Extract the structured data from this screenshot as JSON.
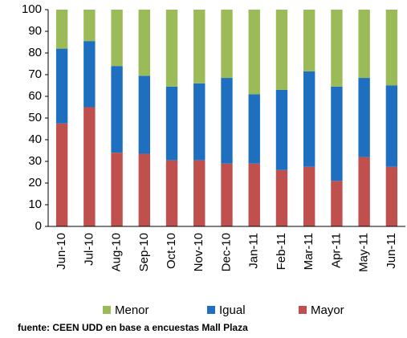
{
  "chart_data": {
    "type": "stacked_bar",
    "categories": [
      "Jun-10",
      "Jul-10",
      "Aug-10",
      "Sep-10",
      "Oct-10",
      "Nov-10",
      "Dec-10",
      "Jan-11",
      "Feb-11",
      "Mar-11",
      "Apr-11",
      "May-11",
      "Jun-11"
    ],
    "series": [
      {
        "name": "Menor",
        "color": "#9bbb59",
        "values": [
          18,
          14.5,
          26,
          30.5,
          35.5,
          34,
          31.5,
          39,
          37,
          28.5,
          35.5,
          31.5,
          35
        ]
      },
      {
        "name": "Igual",
        "color": "#1f6fc0",
        "values": [
          34.5,
          30.5,
          40,
          36,
          34,
          35.5,
          39.5,
          32,
          37,
          44,
          43.5,
          36.5,
          37.5
        ]
      },
      {
        "name": "Mayor",
        "color": "#c0504d",
        "values": [
          47.5,
          55,
          34,
          33.5,
          30.5,
          30.5,
          29,
          29,
          26,
          27.5,
          21,
          32,
          27.5
        ]
      }
    ],
    "ylim": [
      0,
      100
    ],
    "yticks": [
      0,
      10,
      20,
      30,
      40,
      50,
      60,
      70,
      80,
      90,
      100
    ],
    "source": "fuente: CEEN UDD en base a encuestas Mall Plaza"
  }
}
